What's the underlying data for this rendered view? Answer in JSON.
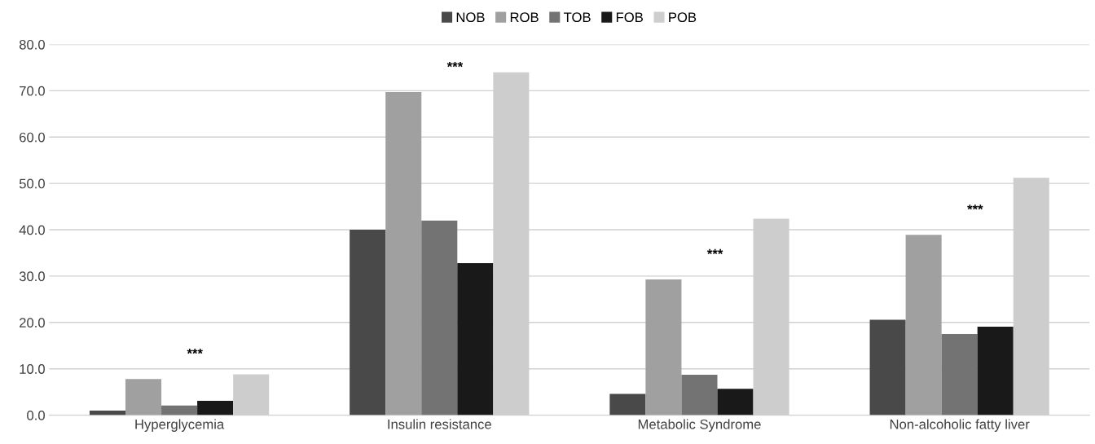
{
  "chart_data": {
    "type": "bar",
    "categories": [
      "Hyperglycemia",
      "Insulin resistance",
      "Metabolic Syndrome",
      "Non-alcoholic fatty liver"
    ],
    "series": [
      {
        "name": "NOB",
        "color": "#494949",
        "values": [
          1.0,
          40.0,
          4.6,
          20.6
        ]
      },
      {
        "name": "ROB",
        "color": "#a0a0a0",
        "values": [
          7.8,
          69.7,
          29.3,
          38.9
        ]
      },
      {
        "name": "TOB",
        "color": "#737373",
        "values": [
          2.1,
          42.0,
          8.7,
          17.5
        ]
      },
      {
        "name": "FOB",
        "color": "#191919",
        "values": [
          3.1,
          32.8,
          5.7,
          19.1
        ]
      },
      {
        "name": "POB",
        "color": "#cdcdcd",
        "values": [
          8.8,
          74.0,
          42.4,
          51.2
        ]
      }
    ],
    "annotations": [
      "***",
      "***",
      "***",
      "***"
    ],
    "ylim": [
      0,
      80
    ],
    "yticks": [
      {
        "value": 0,
        "label": "0.0"
      },
      {
        "value": 10,
        "label": "10.0"
      },
      {
        "value": 20,
        "label": "20.0"
      },
      {
        "value": 30,
        "label": "30.0"
      },
      {
        "value": 40,
        "label": "40.0"
      },
      {
        "value": 50,
        "label": "50.0"
      },
      {
        "value": 60,
        "label": "60.0"
      },
      {
        "value": 70,
        "label": "70.0"
      },
      {
        "value": 80,
        "label": "80.0"
      }
    ],
    "grid": "y",
    "legend": "top"
  }
}
